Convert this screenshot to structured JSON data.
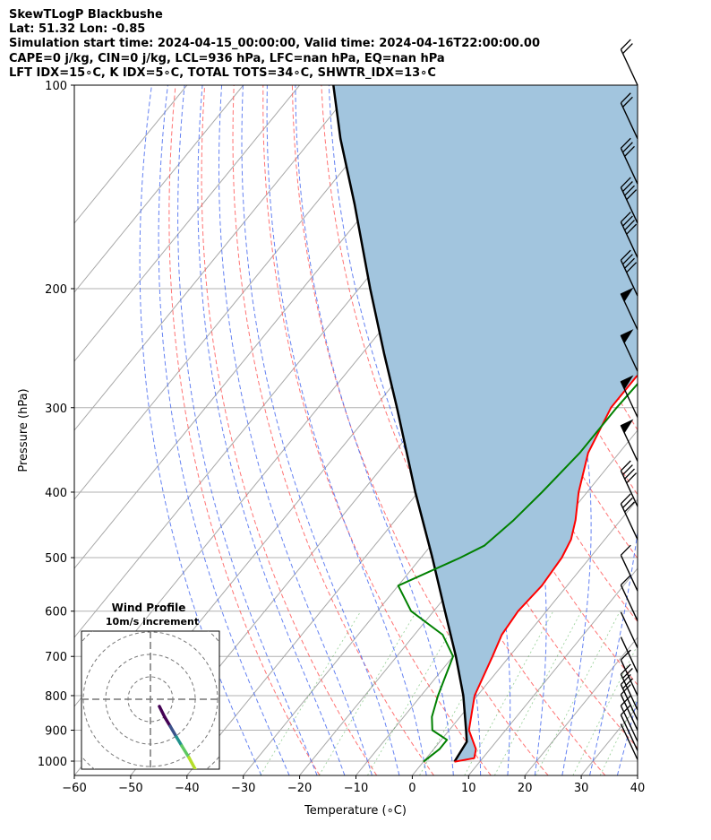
{
  "header": {
    "line1": "SkewTLogP Blackbushe",
    "line2": "Lat: 51.32   Lon: -0.85",
    "line3": "Simulation start time: 2024-04-15_00:00:00, Valid time: 2024-04-16T22:00:00.00",
    "line4": "CAPE=0 j/kg, CIN=0 j/kg, LCL=936 hPa, LFC=nan hPa, EQ=nan hPa",
    "line5": "LFT IDX=15∘C, K IDX=5∘C, TOTAL TOTS=34∘C, SHWTR_IDX=13∘C"
  },
  "chart_data": {
    "type": "line",
    "xlabel": "Temperature (∘C)",
    "ylabel": "Pressure (hPa)",
    "xlim": [
      -60,
      40
    ],
    "ylim": [
      1050,
      100
    ],
    "y_scale": "log",
    "grid": true,
    "x_ticks": [
      -60,
      -50,
      -40,
      -30,
      -20,
      -10,
      0,
      10,
      20,
      30,
      40
    ],
    "y_ticks": [
      1000,
      900,
      800,
      700,
      600,
      500,
      400,
      300,
      200,
      100
    ],
    "series": [
      {
        "role": "temperature",
        "color": "#ff0000",
        "points": [
          [
            1002,
            5.5
          ],
          [
            990,
            8.5
          ],
          [
            960,
            7.5
          ],
          [
            900,
            3.5
          ],
          [
            800,
            -0.5
          ],
          [
            700,
            -3
          ],
          [
            650,
            -4.5
          ],
          [
            600,
            -5
          ],
          [
            550,
            -4.5
          ],
          [
            500,
            -5
          ],
          [
            470,
            -6
          ],
          [
            440,
            -8
          ],
          [
            400,
            -11.5
          ],
          [
            350,
            -15.5
          ],
          [
            300,
            -18
          ],
          [
            270,
            -18
          ],
          [
            240,
            -16
          ],
          [
            200,
            -11
          ],
          [
            170,
            -6
          ],
          [
            150,
            -2
          ],
          [
            125,
            4
          ],
          [
            105,
            10
          ],
          [
            100,
            12
          ]
        ]
      },
      {
        "role": "dewpoint",
        "color": "#008000",
        "points": [
          [
            1002,
            0
          ],
          [
            960,
            1
          ],
          [
            930,
            1
          ],
          [
            900,
            -3
          ],
          [
            860,
            -5
          ],
          [
            800,
            -7
          ],
          [
            700,
            -10
          ],
          [
            650,
            -15
          ],
          [
            600,
            -24
          ],
          [
            550,
            -30
          ],
          [
            500,
            -23
          ],
          [
            480,
            -20.5
          ],
          [
            440,
            -19
          ],
          [
            400,
            -18
          ],
          [
            350,
            -17
          ],
          [
            300,
            -17
          ],
          [
            260,
            -16.5
          ],
          [
            230,
            -16
          ],
          [
            200,
            -18
          ],
          [
            180,
            -22
          ],
          [
            170,
            -26
          ],
          [
            160,
            -26
          ],
          [
            140,
            -20
          ],
          [
            120,
            -13
          ],
          [
            100,
            -5
          ]
        ]
      },
      {
        "role": "parcel",
        "color": "#000000",
        "points": [
          [
            1002,
            5.5
          ],
          [
            936,
            4.8
          ],
          [
            900,
            3
          ],
          [
            800,
            -2.5
          ],
          [
            700,
            -9.5
          ],
          [
            600,
            -18
          ],
          [
            500,
            -28
          ],
          [
            400,
            -40.5
          ],
          [
            300,
            -56
          ],
          [
            250,
            -66
          ],
          [
            200,
            -78
          ],
          [
            150,
            -93
          ],
          [
            120,
            -105
          ],
          [
            100,
            -114
          ]
        ]
      }
    ],
    "cape_fill": {
      "color": "#a2c5de"
    },
    "wind_barbs": [
      {
        "p": 100,
        "kind": "barbs",
        "n": 2
      },
      {
        "p": 120,
        "kind": "barbs",
        "n": 2
      },
      {
        "p": 140,
        "kind": "barbs",
        "n": 3
      },
      {
        "p": 160,
        "kind": "barbs",
        "n": 4
      },
      {
        "p": 180,
        "kind": "barbs",
        "n": 4
      },
      {
        "p": 205,
        "kind": "barbs",
        "n": 4
      },
      {
        "p": 230,
        "kind": "flag",
        "n": 0
      },
      {
        "p": 265,
        "kind": "flag",
        "n": 0
      },
      {
        "p": 310,
        "kind": "flag",
        "n": 0
      },
      {
        "p": 360,
        "kind": "flag",
        "n": 0
      },
      {
        "p": 420,
        "kind": "barbs",
        "n": 4
      },
      {
        "p": 470,
        "kind": "barbs",
        "n": 3
      },
      {
        "p": 560,
        "kind": "barbs",
        "n": 1
      },
      {
        "p": 620,
        "kind": "barbs",
        "n": 1
      },
      {
        "p": 680,
        "kind": "barbs",
        "n": 0
      },
      {
        "p": 740,
        "kind": "barbs",
        "n": 0
      },
      {
        "p": 800,
        "kind": "barbs",
        "n": 1
      },
      {
        "p": 840,
        "kind": "barbs",
        "n": 2
      },
      {
        "p": 870,
        "kind": "barbs",
        "n": 2
      },
      {
        "p": 900,
        "kind": "barbs",
        "n": 1
      },
      {
        "p": 935,
        "kind": "barbs",
        "n": 1
      },
      {
        "p": 965,
        "kind": "barbs",
        "n": 1
      },
      {
        "p": 995,
        "kind": "barbs",
        "n": 0
      }
    ],
    "hodograph": {
      "title": "Wind Profile",
      "subtitle": "10m/s increment",
      "colors": [
        "#440154",
        "#3b528b",
        "#21918c",
        "#5ec962",
        "#b5de2b"
      ]
    }
  }
}
